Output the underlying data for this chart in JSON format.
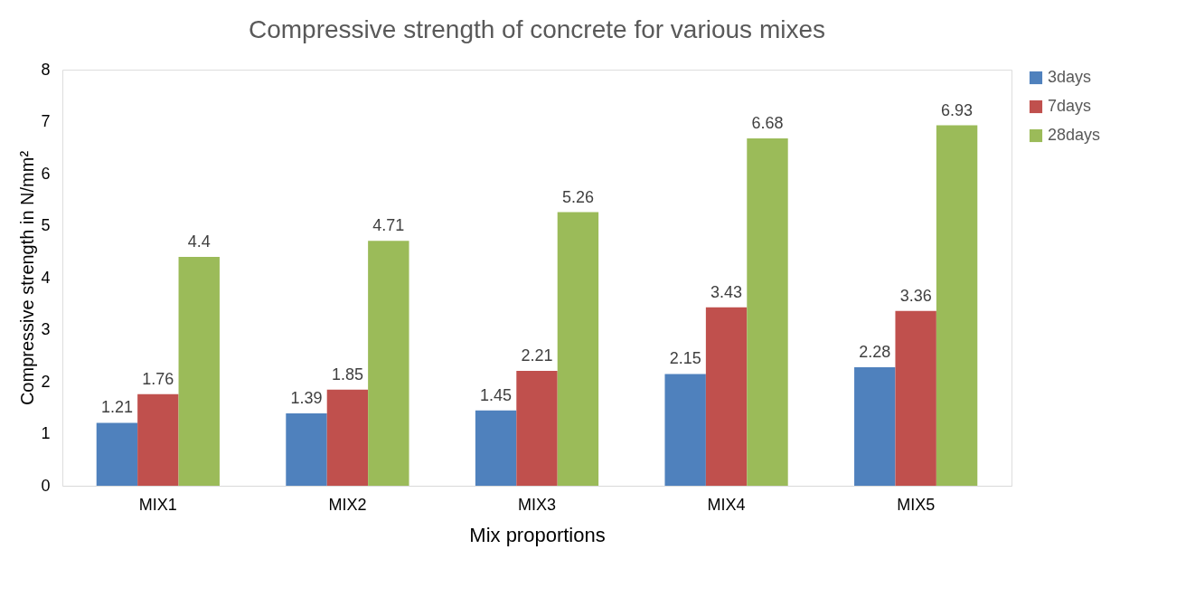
{
  "chart_data": {
    "type": "bar",
    "title": "Compressive strength of concrete for various mixes",
    "xlabel": "Mix proportions",
    "ylabel": "Compressive strength in N/mm²",
    "categories": [
      "MIX1",
      "MIX2",
      "MIX3",
      "MIX4",
      "MIX5"
    ],
    "series": [
      {
        "name": "3days",
        "color": "#4f81bd",
        "values": [
          1.21,
          1.39,
          1.45,
          2.15,
          2.28
        ]
      },
      {
        "name": "7days",
        "color": "#c0504d",
        "values": [
          1.76,
          1.85,
          2.21,
          3.43,
          3.36
        ]
      },
      {
        "name": "28days",
        "color": "#9bbb59",
        "values": [
          4.4,
          4.71,
          5.26,
          6.68,
          6.93
        ]
      }
    ],
    "ylim": [
      0,
      8
    ],
    "yticks": [
      0,
      1,
      2,
      3,
      4,
      5,
      6,
      7,
      8
    ],
    "grid": false,
    "legend": "right",
    "data_labels": true
  }
}
